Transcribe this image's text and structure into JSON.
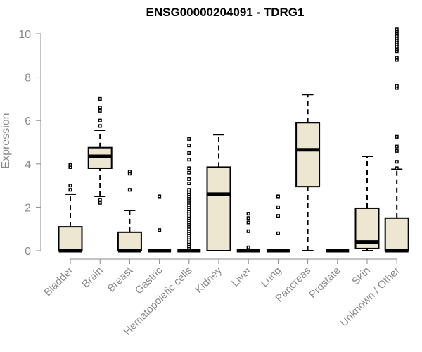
{
  "chart_data": {
    "type": "boxplot",
    "title": "ENSG00000204091 - TDRG1",
    "xlabel": "",
    "ylabel": "Expression",
    "ylim": [
      0,
      10.3
    ],
    "yticks": [
      0,
      2,
      4,
      6,
      8,
      10
    ],
    "grid": false,
    "colors": {
      "box_fill": "#ede6d0",
      "box_stroke": "#000000",
      "axis": "#8a8a8a",
      "title": "#000000"
    },
    "categories": [
      "Bladder",
      "Brain",
      "Breast",
      "Gastric",
      "Hematopoietic cells",
      "Kidney",
      "Liver",
      "Lung",
      "Pancreas",
      "Prostate",
      "Skin",
      "Unknown / Other"
    ],
    "boxes": [
      {
        "min": 0,
        "q1": 0,
        "median": 0,
        "q3": 1.1,
        "max": 2.6,
        "outliers": [
          2.8,
          3.0,
          3.85,
          3.95
        ]
      },
      {
        "min": 2.5,
        "q1": 3.8,
        "median": 4.35,
        "q3": 4.75,
        "max": 5.55,
        "outliers": [
          2.2,
          2.35,
          5.75,
          6.0,
          6.45,
          6.6,
          7.0
        ]
      },
      {
        "min": 0,
        "q1": 0,
        "median": 0,
        "q3": 0.85,
        "max": 1.85,
        "outliers": [
          2.8,
          3.55,
          3.65
        ]
      },
      {
        "min": 0,
        "q1": 0,
        "median": 0,
        "q3": 0,
        "max": 0,
        "outliers": [
          0.95,
          2.5
        ]
      },
      {
        "min": 0,
        "q1": 0,
        "median": 0,
        "q3": 0,
        "max": 0,
        "outliers": [
          0.1,
          0.2,
          0.3,
          0.4,
          0.5,
          0.6,
          0.7,
          0.8,
          0.9,
          1.0,
          1.1,
          1.2,
          1.3,
          1.4,
          1.5,
          1.6,
          1.7,
          1.8,
          1.9,
          2.0,
          2.1,
          2.2,
          2.3,
          2.4,
          2.5,
          2.6,
          2.7,
          2.8,
          3.1,
          3.3,
          3.6,
          3.8,
          4.2,
          4.5,
          4.85,
          5.15
        ]
      },
      {
        "min": 0,
        "q1": 0,
        "median": 2.6,
        "q3": 3.85,
        "max": 5.35,
        "outliers": []
      },
      {
        "min": 0,
        "q1": 0,
        "median": 0,
        "q3": 0,
        "max": 0,
        "outliers": [
          0.15,
          0.9,
          1.3,
          1.5,
          1.7
        ]
      },
      {
        "min": 0,
        "q1": 0,
        "median": 0,
        "q3": 0,
        "max": 0,
        "outliers": [
          0.8,
          1.6,
          2.0,
          2.5
        ]
      },
      {
        "min": 0,
        "q1": 2.95,
        "median": 4.65,
        "q3": 5.9,
        "max": 7.2,
        "outliers": []
      },
      {
        "min": 0,
        "q1": 0,
        "median": 0,
        "q3": 0,
        "max": 0,
        "outliers": []
      },
      {
        "min": 0,
        "q1": 0.1,
        "median": 0.4,
        "q3": 1.95,
        "max": 4.35,
        "outliers": []
      },
      {
        "min": 0,
        "q1": 0,
        "median": 0,
        "q3": 1.5,
        "max": 3.75,
        "outliers": [
          3.8,
          4.1,
          4.6,
          4.8,
          5.25,
          7.5,
          7.6,
          8.8,
          8.9,
          9.2,
          9.3,
          9.4,
          9.5,
          9.6,
          9.7,
          9.8,
          9.9,
          10.0,
          10.1,
          10.2
        ]
      }
    ]
  }
}
